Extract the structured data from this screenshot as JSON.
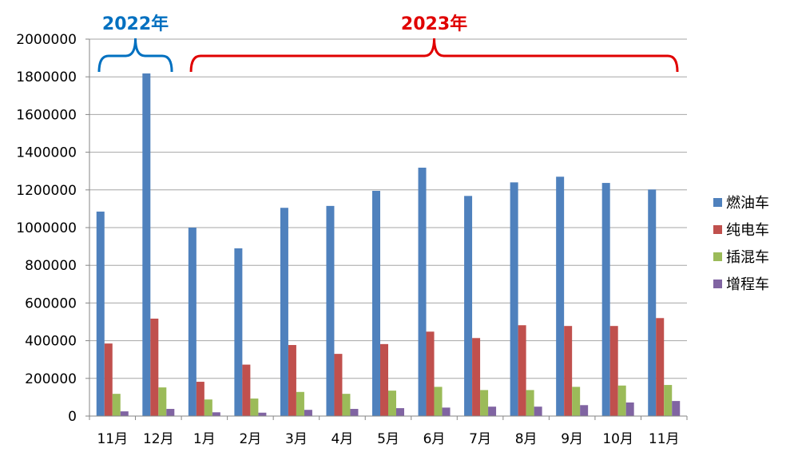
{
  "chart_data": {
    "type": "bar",
    "categories": [
      "11月",
      "12月",
      "1月",
      "2月",
      "3月",
      "4月",
      "5月",
      "6月",
      "7月",
      "8月",
      "9月",
      "10月",
      "11月"
    ],
    "series": [
      {
        "name": "燃油车",
        "color": "#4F81BD",
        "values": [
          1085000,
          1818000,
          1000000,
          890000,
          1105000,
          1115000,
          1195000,
          1318000,
          1168000,
          1240000,
          1270000,
          1237000,
          1202000
        ]
      },
      {
        "name": "纯电车",
        "color": "#C0504D",
        "values": [
          385000,
          517000,
          182000,
          273000,
          377000,
          330000,
          382000,
          448000,
          414000,
          482000,
          478000,
          478000,
          520000
        ]
      },
      {
        "name": "插混车",
        "color": "#9BBB59",
        "values": [
          118000,
          152000,
          88000,
          93000,
          128000,
          118000,
          135000,
          155000,
          138000,
          138000,
          155000,
          162000,
          165000
        ]
      },
      {
        "name": "增程车",
        "color": "#8064A2",
        "values": [
          25000,
          38000,
          20000,
          18000,
          33000,
          38000,
          42000,
          45000,
          50000,
          50000,
          58000,
          72000,
          80000
        ]
      }
    ],
    "ylim": [
      0,
      2000000
    ],
    "yticks": [
      "0",
      "200000",
      "400000",
      "600000",
      "800000",
      "1000000",
      "1200000",
      "1400000",
      "1600000",
      "1800000",
      "2000000"
    ],
    "grid": true,
    "legend_position": "right",
    "annotations": [
      {
        "text": "2022年",
        "color": "#0070C0",
        "from_category": 0,
        "to_category": 1
      },
      {
        "text": "2023年",
        "color": "#E00000",
        "from_category": 2,
        "to_category": 12
      }
    ]
  }
}
